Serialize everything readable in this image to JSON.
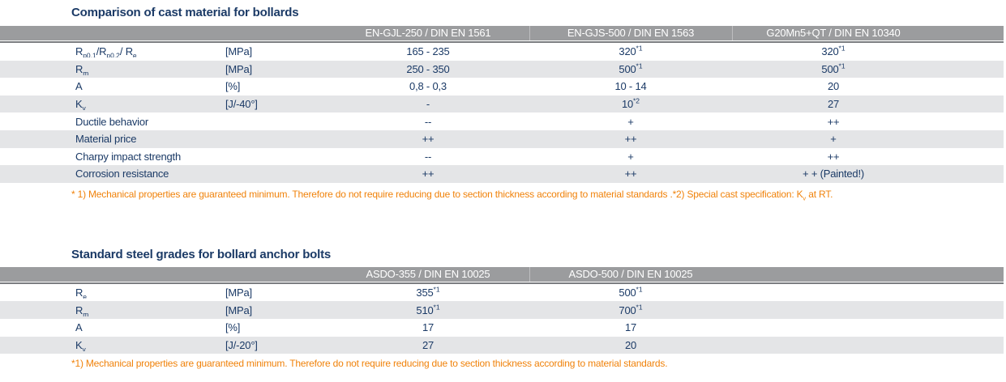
{
  "colors": {
    "navy": "#1B3A66",
    "orange": "#F0820A",
    "header_gray": "#9B9C9E",
    "row_alt": "#E4E5E7",
    "header_rule": "#7C7E81"
  },
  "tables": [
    {
      "title": "Comparison of cast material for bollards",
      "columns": [
        "EN-GJL-250 / DIN EN 1561",
        "EN-GJS-500 / DIN EN 1563",
        "G20Mn5+QT / DIN EN 10340"
      ],
      "rows": [
        {
          "label": [
            {
              "t": "R",
              "s": "p0,1"
            },
            {
              "t": "/R",
              "s": "p0,2"
            },
            {
              "t": "/ R",
              "s": "e"
            }
          ],
          "unit": "[MPa]",
          "values": [
            "165 - 235",
            {
              "v": "320",
              "sup": "*1"
            },
            {
              "v": "320",
              "sup": "*1"
            }
          ]
        },
        {
          "label": [
            {
              "t": "R",
              "s": "m"
            }
          ],
          "unit": "[MPa]",
          "values": [
            "250 - 350",
            {
              "v": "500",
              "sup": "*1"
            },
            {
              "v": "500",
              "sup": "*1"
            }
          ]
        },
        {
          "label": [
            {
              "t": "A"
            }
          ],
          "unit": "[%]",
          "values": [
            "0,8 - 0,3",
            "10 - 14",
            "20"
          ]
        },
        {
          "label": [
            {
              "t": "K",
              "s": "v"
            }
          ],
          "unit": "[J/-40°]",
          "values": [
            "-",
            {
              "v": "10",
              "sup": "*2"
            },
            "27"
          ]
        },
        {
          "label": [
            {
              "t": "Ductile behavior"
            }
          ],
          "unit": "",
          "values": [
            "--",
            "+",
            "++"
          ]
        },
        {
          "label": [
            {
              "t": "Material price"
            }
          ],
          "unit": "",
          "values": [
            "++",
            "++",
            "+"
          ]
        },
        {
          "label": [
            {
              "t": "Charpy impact strength"
            }
          ],
          "unit": "",
          "values": [
            "--",
            "+",
            "++"
          ]
        },
        {
          "label": [
            {
              "t": "Corrosion resistance"
            }
          ],
          "unit": "",
          "values": [
            "++",
            "++",
            "+ + (Painted!)"
          ]
        }
      ],
      "footnote": [
        {
          "t": "* 1) Mechanical properties are guaranteed minimum. Therefore do not require reducing due to section thickness according to material standards .*2) Special cast specification: K"
        },
        {
          "t": "v",
          "sub": true
        },
        {
          "t": " at RT."
        }
      ]
    },
    {
      "title": "Standard steel grades for bollard anchor bolts",
      "columns": [
        "ASDO-355 / DIN EN 10025",
        "ASDO-500 / DIN EN 10025"
      ],
      "rows": [
        {
          "label": [
            {
              "t": "R",
              "s": "e"
            }
          ],
          "unit": "[MPa]",
          "values": [
            {
              "v": "355",
              "sup": "*1"
            },
            {
              "v": "500",
              "sup": "*1"
            }
          ]
        },
        {
          "label": [
            {
              "t": "R",
              "s": "m"
            }
          ],
          "unit": "[MPa]",
          "values": [
            {
              "v": "510",
              "sup": "*1"
            },
            {
              "v": "700",
              "sup": "*1"
            }
          ]
        },
        {
          "label": [
            {
              "t": "A"
            }
          ],
          "unit": "[%]",
          "values": [
            "17",
            "17"
          ]
        },
        {
          "label": [
            {
              "t": "K",
              "s": "v"
            }
          ],
          "unit": "[J/-20°]",
          "values": [
            "27",
            "20"
          ]
        }
      ],
      "footnote": [
        {
          "t": "*1) Mechanical properties are guaranteed minimum. Therefore do not require reducing due to section thickness according to material standards."
        }
      ]
    }
  ]
}
